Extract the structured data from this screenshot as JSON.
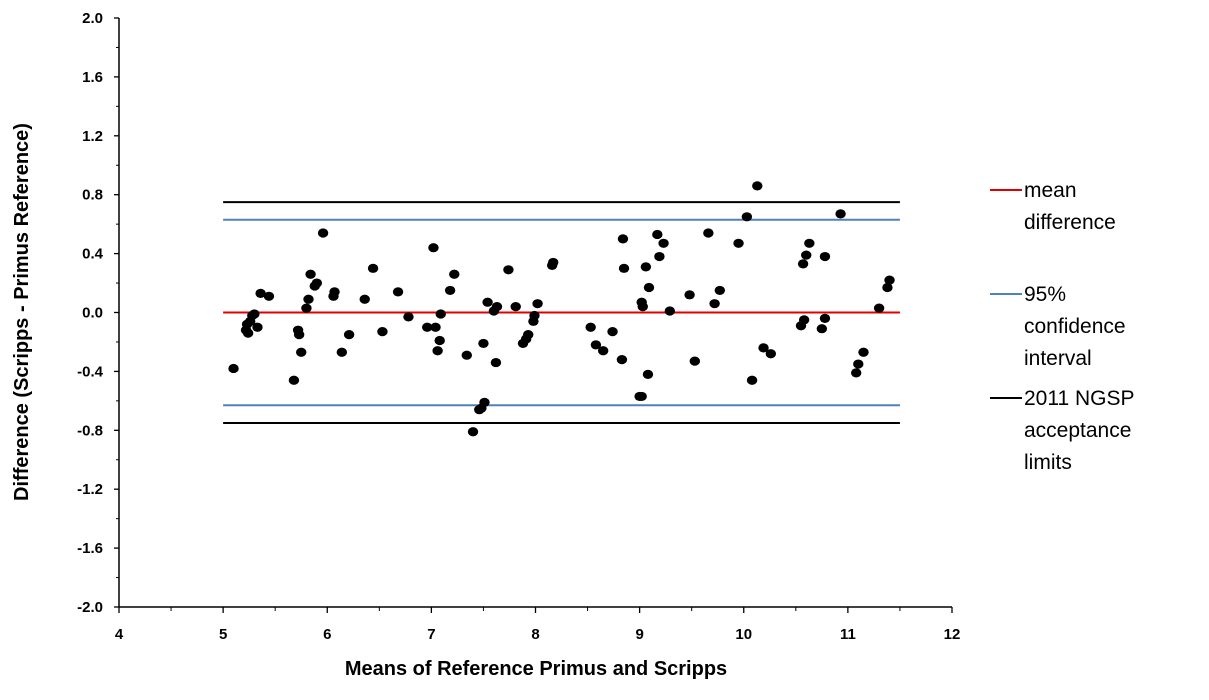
{
  "chart_data": {
    "type": "scatter",
    "title": "",
    "xlabel": "Means of Reference Primus and Scripps",
    "ylabel": "Difference (Scripps - Primus Reference)",
    "xlim": [
      4,
      12
    ],
    "ylim": [
      -2.0,
      2.0
    ],
    "x_ticks": [
      "4",
      "5",
      "6",
      "7",
      "8",
      "9",
      "10",
      "11",
      "12"
    ],
    "y_ticks": [
      "2.0",
      "1.6",
      "1.2",
      "0.8",
      "0.4",
      "0.0",
      "-0.4",
      "-0.8",
      "-1.2",
      "-1.6",
      "-2.0"
    ],
    "grid": false,
    "legend_position": "right",
    "reference_lines": [
      {
        "label_lines": [
          "mean",
          "difference"
        ],
        "color": "#e00000",
        "y": 0.0,
        "x_range": [
          5.0,
          11.5
        ]
      },
      {
        "label_lines": [
          "95%",
          "confidence",
          "interval"
        ],
        "color": "#4f81bd",
        "y": 0.63,
        "x_range": [
          5.0,
          11.5
        ]
      },
      {
        "color": "#4f81bd",
        "y": -0.63,
        "x_range": [
          5.0,
          11.5
        ]
      },
      {
        "label_lines": [
          "2011 NGSP",
          "acceptance",
          "limits"
        ],
        "color": "#000000",
        "y": 0.75,
        "x_range": [
          5.0,
          11.5
        ]
      },
      {
        "color": "#000000",
        "y": -0.75,
        "x_range": [
          5.0,
          11.5
        ]
      }
    ],
    "points": [
      [
        5.1,
        -0.38
      ],
      [
        5.22,
        -0.12
      ],
      [
        5.23,
        -0.08
      ],
      [
        5.24,
        -0.14
      ],
      [
        5.26,
        -0.06
      ],
      [
        5.28,
        -0.02
      ],
      [
        5.3,
        -0.01
      ],
      [
        5.33,
        -0.1
      ],
      [
        5.36,
        0.13
      ],
      [
        5.44,
        0.11
      ],
      [
        5.68,
        -0.46
      ],
      [
        5.72,
        -0.12
      ],
      [
        5.73,
        -0.15
      ],
      [
        5.75,
        -0.27
      ],
      [
        5.8,
        0.03
      ],
      [
        5.82,
        0.09
      ],
      [
        5.84,
        0.26
      ],
      [
        5.88,
        0.18
      ],
      [
        5.9,
        0.2
      ],
      [
        5.96,
        0.54
      ],
      [
        6.06,
        0.11
      ],
      [
        6.07,
        0.14
      ],
      [
        6.14,
        -0.27
      ],
      [
        6.21,
        -0.15
      ],
      [
        6.36,
        0.09
      ],
      [
        6.44,
        0.3
      ],
      [
        6.53,
        -0.13
      ],
      [
        6.68,
        0.14
      ],
      [
        6.78,
        -0.03
      ],
      [
        6.96,
        -0.1
      ],
      [
        7.02,
        0.44
      ],
      [
        7.04,
        -0.1
      ],
      [
        7.06,
        -0.26
      ],
      [
        7.08,
        -0.19
      ],
      [
        7.09,
        -0.01
      ],
      [
        7.18,
        0.15
      ],
      [
        7.22,
        0.26
      ],
      [
        7.34,
        -0.29
      ],
      [
        7.4,
        -0.81
      ],
      [
        7.46,
        -0.66
      ],
      [
        7.48,
        -0.65
      ],
      [
        7.5,
        -0.21
      ],
      [
        7.51,
        -0.61
      ],
      [
        7.54,
        0.07
      ],
      [
        7.6,
        0.01
      ],
      [
        7.62,
        -0.34
      ],
      [
        7.63,
        0.04
      ],
      [
        7.74,
        0.29
      ],
      [
        7.81,
        0.04
      ],
      [
        7.88,
        -0.21
      ],
      [
        7.91,
        -0.18
      ],
      [
        7.93,
        -0.15
      ],
      [
        7.98,
        -0.06
      ],
      [
        7.99,
        -0.02
      ],
      [
        8.02,
        0.06
      ],
      [
        8.16,
        0.32
      ],
      [
        8.17,
        0.34
      ],
      [
        8.53,
        -0.1
      ],
      [
        8.58,
        -0.22
      ],
      [
        8.65,
        -0.26
      ],
      [
        8.74,
        -0.13
      ],
      [
        8.83,
        -0.32
      ],
      [
        8.84,
        0.5
      ],
      [
        8.85,
        0.3
      ],
      [
        9.0,
        -0.57
      ],
      [
        9.02,
        -0.57
      ],
      [
        9.02,
        0.07
      ],
      [
        9.03,
        0.04
      ],
      [
        9.06,
        0.31
      ],
      [
        9.08,
        -0.42
      ],
      [
        9.09,
        0.17
      ],
      [
        9.17,
        0.53
      ],
      [
        9.19,
        0.38
      ],
      [
        9.23,
        0.47
      ],
      [
        9.29,
        0.01
      ],
      [
        9.48,
        0.12
      ],
      [
        9.53,
        -0.33
      ],
      [
        9.66,
        0.54
      ],
      [
        9.72,
        0.06
      ],
      [
        9.77,
        0.15
      ],
      [
        9.95,
        0.47
      ],
      [
        10.03,
        0.65
      ],
      [
        10.08,
        -0.46
      ],
      [
        10.13,
        0.86
      ],
      [
        10.19,
        -0.24
      ],
      [
        10.26,
        -0.28
      ],
      [
        10.55,
        -0.09
      ],
      [
        10.57,
        0.33
      ],
      [
        10.58,
        -0.05
      ],
      [
        10.6,
        0.39
      ],
      [
        10.63,
        0.47
      ],
      [
        10.75,
        -0.11
      ],
      [
        10.78,
        -0.04
      ],
      [
        10.78,
        0.38
      ],
      [
        10.93,
        0.67
      ],
      [
        11.08,
        -0.41
      ],
      [
        11.1,
        -0.35
      ],
      [
        11.15,
        -0.27
      ],
      [
        11.3,
        0.03
      ],
      [
        11.38,
        0.17
      ],
      [
        11.4,
        0.22
      ]
    ]
  }
}
